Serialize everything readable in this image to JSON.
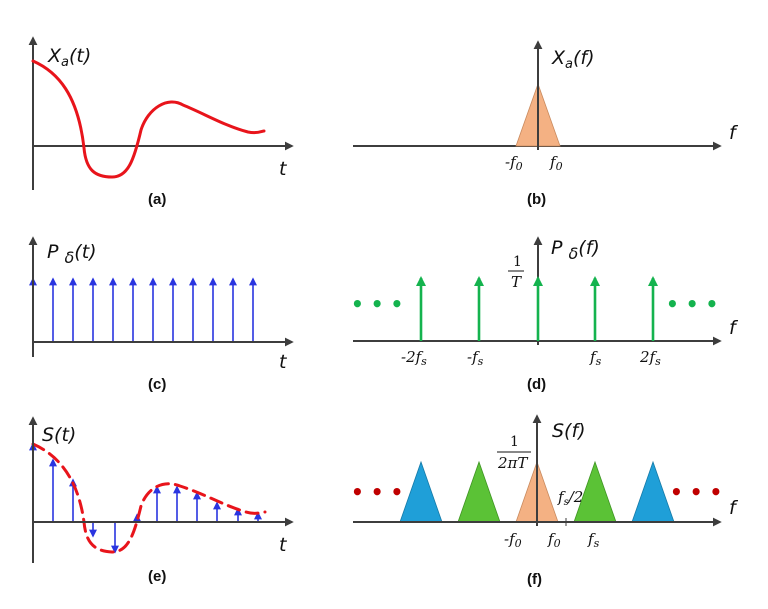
{
  "panels": {
    "a": {
      "caption": "(a)",
      "ylabel": "Xa(t)",
      "xlabel": "t"
    },
    "b": {
      "caption": "(b)",
      "ylabel": "Xa(f)",
      "xlabel": "f",
      "tick_neg": "-f0",
      "tick_pos": "f0"
    },
    "c": {
      "caption": "(c)",
      "ylabel": "Pδ(t)",
      "xlabel": "t"
    },
    "d": {
      "caption": "(d)",
      "ylabel": "Pδ(f)",
      "xlabel": "f",
      "height_num": "1",
      "height_den": "T",
      "ticks": [
        "-2fs",
        "-fs",
        "fs",
        "2fs"
      ],
      "ellipsis": "• • •"
    },
    "e": {
      "caption": "(e)",
      "ylabel": "S(t)",
      "xlabel": "t"
    },
    "f": {
      "caption": "(f)",
      "ylabel": "S(f)",
      "xlabel": "f",
      "height_num": "1",
      "height_den": "2πT",
      "tick_neg": "-f0",
      "tick_pos": "f0",
      "tick_fs": "fs",
      "half_fs": "fs/2",
      "ellipsis": "• • •"
    }
  },
  "colors": {
    "axis": "#3d3d3d",
    "signal": "#e8141b",
    "impulse_time": "#2a35e0",
    "impulse_freq": "#14b34e",
    "spectrum_base": "#f4b183",
    "spectrum_first": "#5bc236",
    "spectrum_second": "#1f9fd8",
    "dots_red": "#c00000",
    "dots_green": "#14b34e"
  }
}
